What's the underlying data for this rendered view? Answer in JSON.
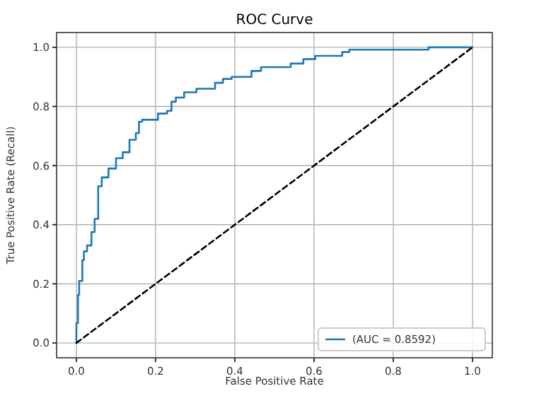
{
  "chart_data": {
    "type": "line",
    "title": "ROC Curve",
    "xlabel": "False Positive Rate",
    "ylabel": "True Positive Rate (Recall)",
    "xlim": [
      -0.05,
      1.05
    ],
    "ylim": [
      -0.05,
      1.05
    ],
    "xticks": [
      {
        "value": 0,
        "label": "0.0"
      },
      {
        "value": 0.2,
        "label": "0.2"
      },
      {
        "value": 0.4,
        "label": "0.4"
      },
      {
        "value": 0.6,
        "label": "0.6"
      },
      {
        "value": 0.8,
        "label": "0.8"
      },
      {
        "value": 1,
        "label": "1.0"
      }
    ],
    "yticks": [
      {
        "value": 0,
        "label": "0.0"
      },
      {
        "value": 0.2,
        "label": "0.2"
      },
      {
        "value": 0.4,
        "label": "0.4"
      },
      {
        "value": 0.6,
        "label": "0.6"
      },
      {
        "value": 0.8,
        "label": "0.8"
      },
      {
        "value": 1,
        "label": "1.0"
      }
    ],
    "grid": true,
    "legend": "bottom right",
    "series": [
      {
        "name": "(AUC = 0.8592)",
        "color": "#1f77b4",
        "line_style": "solid",
        "x": [
          0,
          0,
          0.004,
          0.004,
          0.007,
          0.007,
          0.015,
          0.015,
          0.019,
          0.019,
          0.027,
          0.027,
          0.038,
          0.038,
          0.046,
          0.046,
          0.055,
          0.055,
          0.064,
          0.064,
          0.081,
          0.081,
          0.1,
          0.1,
          0.117,
          0.117,
          0.134,
          0.134,
          0.15,
          0.15,
          0.158,
          0.158,
          0.166,
          0.166,
          0.206,
          0.206,
          0.229,
          0.229,
          0.24,
          0.24,
          0.251,
          0.251,
          0.272,
          0.272,
          0.303,
          0.303,
          0.35,
          0.35,
          0.37,
          0.37,
          0.392,
          0.392,
          0.442,
          0.442,
          0.466,
          0.466,
          0.541,
          0.541,
          0.573,
          0.573,
          0.603,
          0.603,
          0.671,
          0.671,
          0.689,
          0.689,
          0.889,
          0.889,
          1
        ],
        "values": [
          0,
          0.067,
          0.067,
          0.163,
          0.163,
          0.21,
          0.21,
          0.28,
          0.28,
          0.31,
          0.31,
          0.33,
          0.33,
          0.375,
          0.375,
          0.42,
          0.42,
          0.53,
          0.53,
          0.56,
          0.56,
          0.59,
          0.59,
          0.625,
          0.625,
          0.645,
          0.645,
          0.687,
          0.687,
          0.71,
          0.71,
          0.748,
          0.748,
          0.755,
          0.755,
          0.776,
          0.776,
          0.785,
          0.785,
          0.816,
          0.816,
          0.83,
          0.83,
          0.848,
          0.848,
          0.86,
          0.86,
          0.88,
          0.88,
          0.893,
          0.893,
          0.9,
          0.9,
          0.92,
          0.92,
          0.933,
          0.933,
          0.945,
          0.945,
          0.96,
          0.96,
          0.971,
          0.971,
          0.984,
          0.984,
          0.992,
          0.992,
          1,
          1
        ]
      },
      {
        "color": "#000000",
        "line_style": "dashed",
        "x": [
          0,
          1
        ],
        "values": [
          0,
          1
        ]
      }
    ]
  }
}
